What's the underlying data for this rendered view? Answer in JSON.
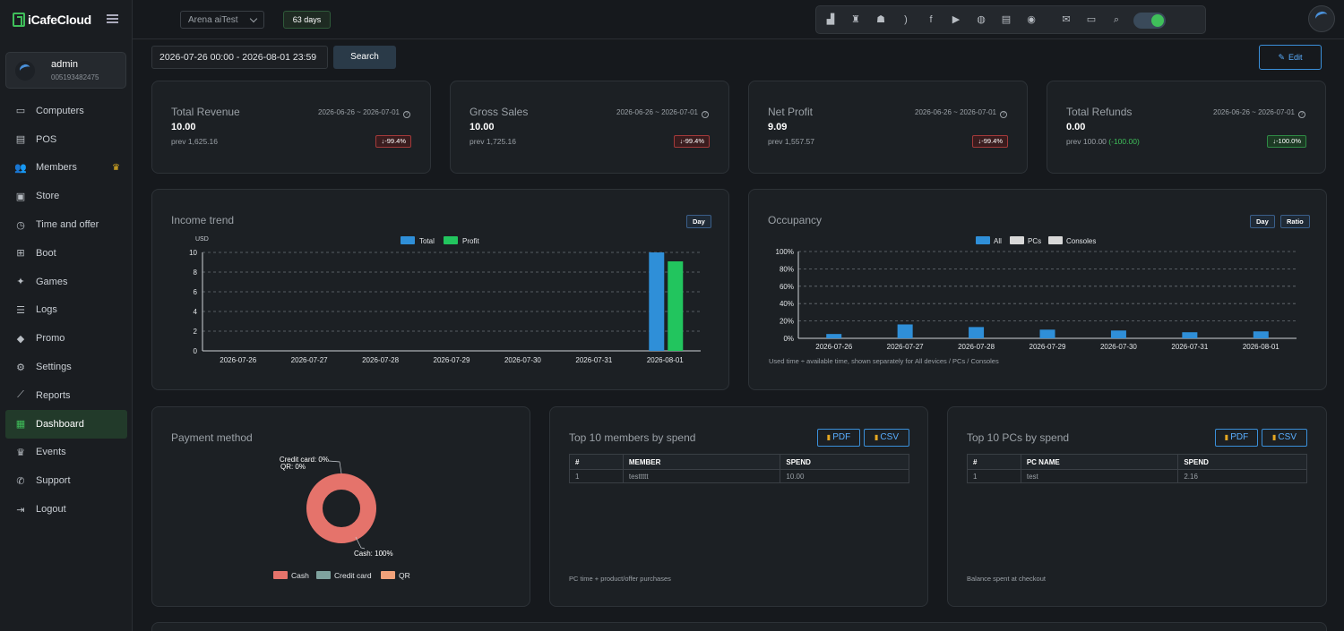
{
  "app": {
    "logo": "iCafeCloud"
  },
  "user": {
    "name": "admin",
    "id": "005193482475"
  },
  "sidebar": {
    "items": [
      {
        "label": "Computers",
        "icon": "monitor-icon",
        "glyph": "▭"
      },
      {
        "label": "POS",
        "icon": "pos-icon",
        "glyph": "▤"
      },
      {
        "label": "Members",
        "icon": "members-icon",
        "glyph": "👥"
      },
      {
        "label": "Store",
        "icon": "store-icon",
        "glyph": "▣"
      },
      {
        "label": "Time and offer",
        "icon": "clock-icon",
        "glyph": "◷"
      },
      {
        "label": "Boot",
        "icon": "windows-icon",
        "glyph": "⊞"
      },
      {
        "label": "Games",
        "icon": "games-icon",
        "glyph": "✦"
      },
      {
        "label": "Logs",
        "icon": "logs-icon",
        "glyph": "☰"
      },
      {
        "label": "Promo",
        "icon": "tag-icon",
        "glyph": "◆"
      },
      {
        "label": "Settings",
        "icon": "gear-icon",
        "glyph": "⚙"
      },
      {
        "label": "Reports",
        "icon": "chart-line-icon",
        "glyph": "⟋"
      },
      {
        "label": "Dashboard",
        "icon": "dashboard-icon",
        "glyph": "▦"
      },
      {
        "label": "Events",
        "icon": "crown-icon",
        "glyph": "♛"
      },
      {
        "label": "Support",
        "icon": "phone-icon",
        "glyph": "✆"
      },
      {
        "label": "Logout",
        "icon": "logout-icon",
        "glyph": "⇥"
      }
    ]
  },
  "topbar": {
    "cafe": "Arena aiTest",
    "days": "63 days"
  },
  "filter": {
    "date_range": "2026-07-26 00:00 - 2026-08-01 23:59",
    "search_label": "Search",
    "edit_label": "Edit"
  },
  "stats": [
    {
      "title": "Total Revenue",
      "range": "2026-06-26 ~ 2026-07-01",
      "value": "10.00",
      "prev": "prev 1,625.16",
      "prev_extra": "",
      "change": "↓-99.4%",
      "tone": "red"
    },
    {
      "title": "Gross Sales",
      "range": "2026-06-26 ~ 2026-07-01",
      "value": "10.00",
      "prev": "prev 1,725.16",
      "prev_extra": "",
      "change": "↓-99.4%",
      "tone": "red"
    },
    {
      "title": "Net Profit",
      "range": "2026-06-26 ~ 2026-07-01",
      "value": "9.09",
      "prev": "prev 1,557.57",
      "prev_extra": "",
      "change": "↓-99.4%",
      "tone": "red"
    },
    {
      "title": "Total Refunds",
      "range": "2026-06-26 ~ 2026-07-01",
      "value": "0.00",
      "prev": "prev 100.00",
      "prev_extra": "(-100.00)",
      "change": "↓-100.0%",
      "tone": "green"
    }
  ],
  "income": {
    "title": "Income trend",
    "day_label": "Day",
    "chart_data": {
      "type": "bar",
      "ylabel": "USD",
      "categories": [
        "2026-07-26",
        "2026-07-27",
        "2026-07-28",
        "2026-07-29",
        "2026-07-30",
        "2026-07-31",
        "2026-08-01"
      ],
      "series": [
        {
          "name": "Total",
          "values": [
            0,
            0,
            0,
            0,
            0,
            0,
            10
          ],
          "color": "#2f8fd8"
        },
        {
          "name": "Profit",
          "values": [
            0,
            0,
            0,
            0,
            0,
            0,
            9.09
          ],
          "color": "#22c55e"
        }
      ],
      "ylim": [
        0,
        10
      ],
      "yticks": [
        "0",
        "2",
        "4",
        "6",
        "8",
        "10"
      ],
      "grid": true,
      "legend": "top-center"
    }
  },
  "occupancy": {
    "title": "Occupancy",
    "day_label": "Day",
    "ratio_label": "Ratio",
    "note": "Used time ÷ available time, shown separately for All devices / PCs / Consoles",
    "chart_data": {
      "type": "bar",
      "categories": [
        "2026-07-26",
        "2026-07-27",
        "2026-07-28",
        "2026-07-29",
        "2026-07-30",
        "2026-07-31",
        "2026-08-01"
      ],
      "series": [
        {
          "name": "All",
          "values": [
            5,
            16,
            13,
            10,
            9,
            7,
            8
          ],
          "color": "#2f8fd8"
        },
        {
          "name": "PCs",
          "values": [
            0,
            0,
            0,
            0,
            0,
            0,
            0
          ],
          "color": "#d8d8d8"
        },
        {
          "name": "Consoles",
          "values": [
            0,
            0,
            0,
            0,
            0,
            0,
            0
          ],
          "color": "#d8d8d8"
        }
      ],
      "ylim": [
        0,
        100
      ],
      "yticks": [
        "0%",
        "20%",
        "40%",
        "60%",
        "80%",
        "100%"
      ],
      "grid": true,
      "legend": "top-center"
    }
  },
  "payment": {
    "title": "Payment method",
    "chart_data": {
      "type": "pie",
      "labels": [
        "Cash",
        "Credit card",
        "QR"
      ],
      "values": [
        100,
        0,
        0
      ],
      "colors": [
        "#e5736b",
        "#7fa39f",
        "#f2a27a"
      ],
      "slice_labels": [
        "Cash: 100%",
        "Credit card: 0%",
        "QR: 0%"
      ],
      "legend": "bottom"
    }
  },
  "top_members": {
    "title": "Top 10 members by spend",
    "pdf": "PDF",
    "csv": "CSV",
    "headers": [
      "#",
      "MEMBER",
      "SPEND"
    ],
    "rows": [
      [
        "1",
        "testtttt",
        "10.00"
      ]
    ],
    "note": "PC time + product/offer purchases"
  },
  "top_pcs": {
    "title": "Top 10 PCs by spend",
    "pdf": "PDF",
    "csv": "CSV",
    "headers": [
      "#",
      "PC NAME",
      "SPEND"
    ],
    "rows": [
      [
        "1",
        "test",
        "2.16"
      ]
    ],
    "note": "Balance spent at checkout"
  }
}
